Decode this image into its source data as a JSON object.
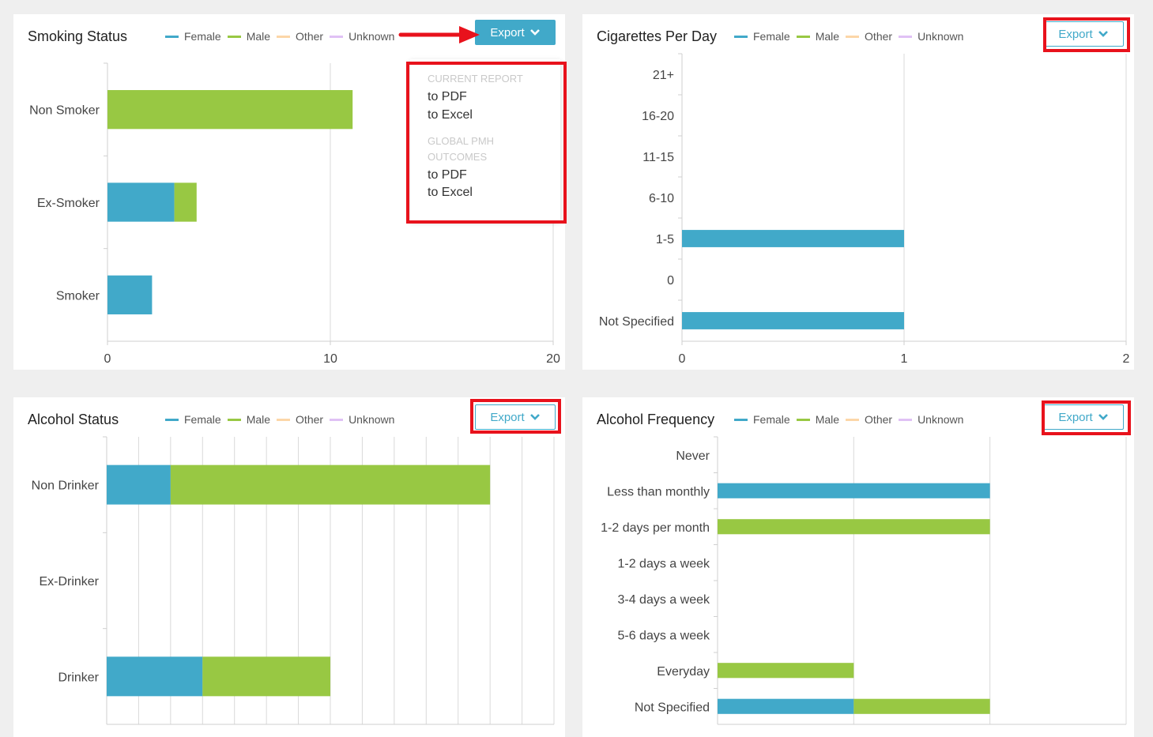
{
  "colors": {
    "female": "#41a9c9",
    "male": "#98c843",
    "other": "#fcd6a8",
    "unknown": "#e0c1f5",
    "highlight": "#e8121c",
    "accent": "#41a9c9"
  },
  "legend": [
    {
      "label": "Female",
      "color": "#41a9c9"
    },
    {
      "label": "Male",
      "color": "#98c843"
    },
    {
      "label": "Other",
      "color": "#fcd6a8"
    },
    {
      "label": "Unknown",
      "color": "#e0c1f5"
    }
  ],
  "export_label": "Export",
  "export_menu": {
    "section1": "CURRENT REPORT",
    "item1": "to PDF",
    "item2": "to Excel",
    "section2": "GLOBAL PMH OUTCOMES",
    "item3": "to PDF",
    "item4": "to Excel"
  },
  "chart_data": [
    {
      "type": "bar",
      "orientation": "horizontal",
      "stacked": true,
      "title": "Smoking Status",
      "categories": [
        "Non Smoker",
        "Ex-Smoker",
        "Smoker"
      ],
      "series": [
        {
          "name": "Female",
          "values": [
            0,
            3,
            2
          ]
        },
        {
          "name": "Male",
          "values": [
            11,
            1,
            0
          ]
        },
        {
          "name": "Other",
          "values": [
            0,
            0,
            0
          ]
        },
        {
          "name": "Unknown",
          "values": [
            0,
            0,
            0
          ]
        }
      ],
      "xlim": [
        0,
        20
      ],
      "xticks": [
        0,
        10,
        20
      ],
      "grid": true,
      "legend": "top"
    },
    {
      "type": "bar",
      "orientation": "horizontal",
      "stacked": true,
      "title": "Cigarettes Per Day",
      "categories": [
        "21+",
        "16-20",
        "11-15",
        "6-10",
        "1-5",
        "0",
        "Not Specified"
      ],
      "series": [
        {
          "name": "Female",
          "values": [
            0,
            0,
            0,
            0,
            1,
            0,
            1
          ]
        },
        {
          "name": "Male",
          "values": [
            0,
            0,
            0,
            0,
            0,
            0,
            0
          ]
        },
        {
          "name": "Other",
          "values": [
            0,
            0,
            0,
            0,
            0,
            0,
            0
          ]
        },
        {
          "name": "Unknown",
          "values": [
            0,
            0,
            0,
            0,
            0,
            0,
            0
          ]
        }
      ],
      "xlim": [
        0,
        2
      ],
      "xticks": [
        0,
        1,
        2
      ],
      "grid": true,
      "legend": "top"
    },
    {
      "type": "bar",
      "orientation": "horizontal",
      "stacked": true,
      "title": "Alcohol Status",
      "categories": [
        "Non Drinker",
        "Ex-Drinker",
        "Drinker"
      ],
      "series": [
        {
          "name": "Female",
          "values": [
            2,
            0,
            3
          ]
        },
        {
          "name": "Male",
          "values": [
            10,
            0,
            4
          ]
        },
        {
          "name": "Other",
          "values": [
            0,
            0,
            0
          ]
        },
        {
          "name": "Unknown",
          "values": [
            0,
            0,
            0
          ]
        }
      ],
      "xlim": [
        0,
        14
      ],
      "xticks": [],
      "grid": true,
      "legend": "top"
    },
    {
      "type": "bar",
      "orientation": "horizontal",
      "stacked": true,
      "title": "Alcohol Frequency",
      "categories": [
        "Never",
        "Less than monthly",
        "1-2 days per month",
        "1-2 days a week",
        "3-4 days a week",
        "5-6 days a week",
        "Everyday",
        "Not Specified"
      ],
      "series": [
        {
          "name": "Female",
          "values": [
            0,
            2,
            0,
            0,
            0,
            0,
            0,
            1
          ]
        },
        {
          "name": "Male",
          "values": [
            0,
            0,
            2,
            0,
            0,
            0,
            1,
            1
          ]
        },
        {
          "name": "Other",
          "values": [
            0,
            0,
            0,
            0,
            0,
            0,
            0,
            0
          ]
        },
        {
          "name": "Unknown",
          "values": [
            0,
            0,
            0,
            0,
            0,
            0,
            0,
            0
          ]
        }
      ],
      "xlim": [
        0,
        3
      ],
      "xticks": [],
      "grid": true,
      "legend": "top"
    }
  ]
}
